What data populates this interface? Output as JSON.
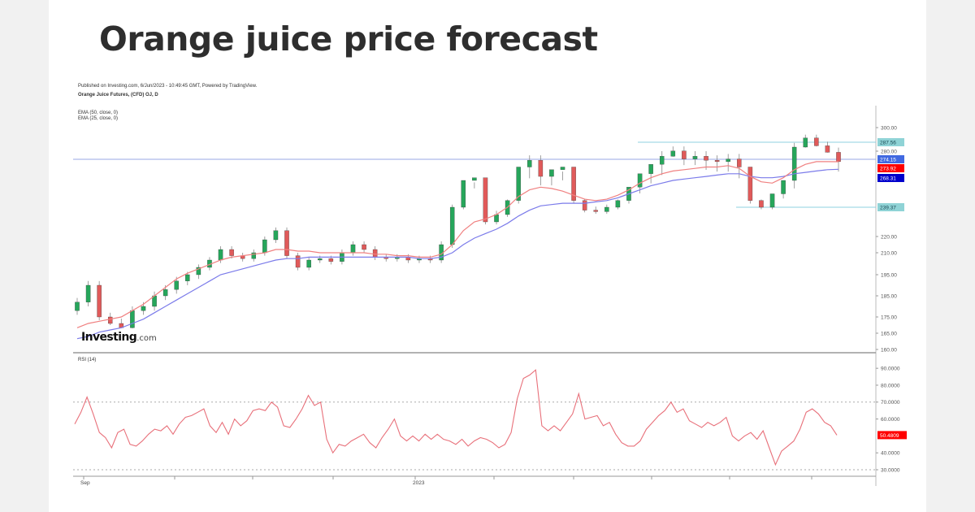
{
  "page": {
    "title": "Orange juice price forecast",
    "background": "#f1f1f1",
    "card_background": "#ffffff"
  },
  "chart_header": {
    "published": "Published on Investing.com, 6/Jun/2023 - 10:49:45 GMT, Powered by TradingView.",
    "symbol": "Orange Juice Futures, (CFD) OJ, D",
    "indicators": [
      "EMA (50, close, 0)",
      "EMA (25, close, 0)"
    ]
  },
  "logo": {
    "brand": "Investing",
    "suffix": ".com"
  },
  "rsi_panel": {
    "title": "RSI (14)"
  },
  "x_axis": {
    "labels": [
      {
        "text": "Sep",
        "x": 103
      },
      {
        "text": "2023",
        "x": 511
      }
    ]
  },
  "colors": {
    "up": "#26a65b",
    "down": "#e05a5a",
    "ema25": "#f08080",
    "ema50": "#7b7bea",
    "rsi": "#e8707a",
    "hline": "#8fd0e0",
    "label_cyan": "#8fd3d6",
    "label_blue": "#4169e1",
    "label_red": "#ff0000",
    "label_navy": "#0000cc"
  },
  "chart_data": [
    {
      "type": "candlestick",
      "title": "Orange Juice Futures, (CFD) OJ, D",
      "subtitle": "Published on Investing.com, 6/Jun/2023 - 10:49:45 GMT, Powered by TradingView.",
      "xlabel": "",
      "ylabel": "",
      "x_tick_labels": [
        "Sep",
        "2023"
      ],
      "y_tick_labels": [
        "300.00",
        "280.00",
        "220.00",
        "210.00",
        "195.00",
        "185.00",
        "175.00",
        "165.00",
        "160.00"
      ],
      "ylim": [
        160,
        300
      ],
      "grid": false,
      "price_labels": [
        {
          "text": "287.56",
          "color": "#8fd3d6",
          "kind": "horizontal-line"
        },
        {
          "text": "274.15",
          "color": "#4169e1",
          "kind": "last-price"
        },
        {
          "text": "273.92",
          "color": "#ff0000",
          "kind": "EMA (25)"
        },
        {
          "text": "268.31",
          "color": "#0000cc",
          "kind": "EMA (50)"
        },
        {
          "text": "239.37",
          "color": "#8fd3d6",
          "kind": "horizontal-line"
        }
      ],
      "horizontal_lines": [
        287.56,
        278,
        239.37
      ],
      "series": [
        {
          "name": "Close (approx.)",
          "values": [
            182,
            190,
            175,
            172,
            170,
            178,
            180,
            185,
            188,
            192,
            195,
            200,
            205,
            212,
            208,
            206,
            210,
            218,
            224,
            208,
            200,
            205,
            206,
            204,
            210,
            215,
            212,
            207,
            206,
            207,
            205,
            206,
            205,
            215,
            240,
            260,
            262,
            230,
            235,
            245,
            270,
            275,
            263,
            268,
            270,
            245,
            238,
            237,
            240,
            245,
            255,
            265,
            272,
            278,
            282,
            276,
            278,
            275,
            274,
            276,
            270,
            245,
            240,
            250,
            260,
            285,
            292,
            286,
            281,
            274
          ]
        },
        {
          "name": "EMA (25, close, 0)",
          "values": [
            170,
            172,
            173,
            174,
            175,
            178,
            181,
            185,
            189,
            193,
            196,
            199,
            202,
            205,
            207,
            208,
            209,
            210,
            212,
            212,
            211,
            211,
            210,
            210,
            210,
            210,
            210,
            209,
            209,
            208,
            208,
            207,
            207,
            209,
            215,
            224,
            230,
            232,
            235,
            240,
            248,
            253,
            255,
            254,
            252,
            249,
            246,
            245,
            246,
            249,
            253,
            258,
            262,
            265,
            267,
            268,
            269,
            270,
            270,
            271,
            269,
            263,
            259,
            258,
            262,
            268,
            272,
            274,
            274,
            273.92
          ]
        },
        {
          "name": "EMA (50, close, 0)",
          "values": [
            165,
            166,
            168,
            169,
            170,
            172,
            174,
            177,
            180,
            183,
            186,
            189,
            192,
            195,
            197,
            199,
            201,
            203,
            205,
            206,
            206,
            207,
            207,
            207,
            207,
            207,
            207,
            207,
            207,
            207,
            207,
            206,
            206,
            207,
            210,
            215,
            219,
            222,
            225,
            229,
            234,
            238,
            241,
            242,
            243,
            243,
            243,
            244,
            245,
            247,
            250,
            253,
            256,
            258,
            260,
            261,
            262,
            263,
            264,
            265,
            265,
            263,
            262,
            262,
            263,
            265,
            266,
            267,
            268,
            268.31
          ]
        }
      ]
    },
    {
      "type": "line",
      "title": "RSI (14)",
      "xlabel": "",
      "ylabel": "",
      "y_tick_labels": [
        "90.0000",
        "80.0000",
        "70.0000",
        "60.0000",
        "50.4809",
        "40.0000",
        "30.0000"
      ],
      "ylim": [
        30,
        92
      ],
      "reference_lines": [
        70,
        30
      ],
      "last_value_label": {
        "text": "50.4809",
        "color": "#ff0000"
      },
      "grid": false,
      "series": [
        {
          "name": "RSI (14)",
          "values": [
            57,
            64,
            73,
            63,
            52,
            49,
            43,
            52,
            54,
            45,
            44,
            47,
            51,
            54,
            53,
            56,
            51,
            57,
            61,
            62,
            64,
            66,
            56,
            52,
            58,
            51,
            60,
            56,
            59,
            65,
            66,
            65,
            70,
            67,
            56,
            55,
            60,
            66,
            74,
            68,
            70,
            48,
            40,
            45,
            44,
            47,
            49,
            51,
            46,
            43,
            49,
            54,
            60,
            50,
            47,
            50,
            47,
            51,
            48,
            51,
            48,
            47,
            45,
            48,
            44,
            47,
            49,
            48,
            46,
            43,
            45,
            52,
            72,
            84,
            86,
            89,
            56,
            53,
            56,
            53,
            58,
            63,
            75,
            60,
            61,
            62,
            56,
            58,
            51,
            46,
            44,
            44,
            47,
            54,
            58,
            62,
            65,
            70,
            64,
            66,
            59,
            57,
            55,
            58,
            56,
            58,
            61,
            50,
            47,
            50,
            52,
            48,
            53,
            43,
            33,
            41,
            44,
            47,
            54,
            64,
            66,
            63,
            58,
            56,
            50.48
          ]
        }
      ]
    }
  ]
}
